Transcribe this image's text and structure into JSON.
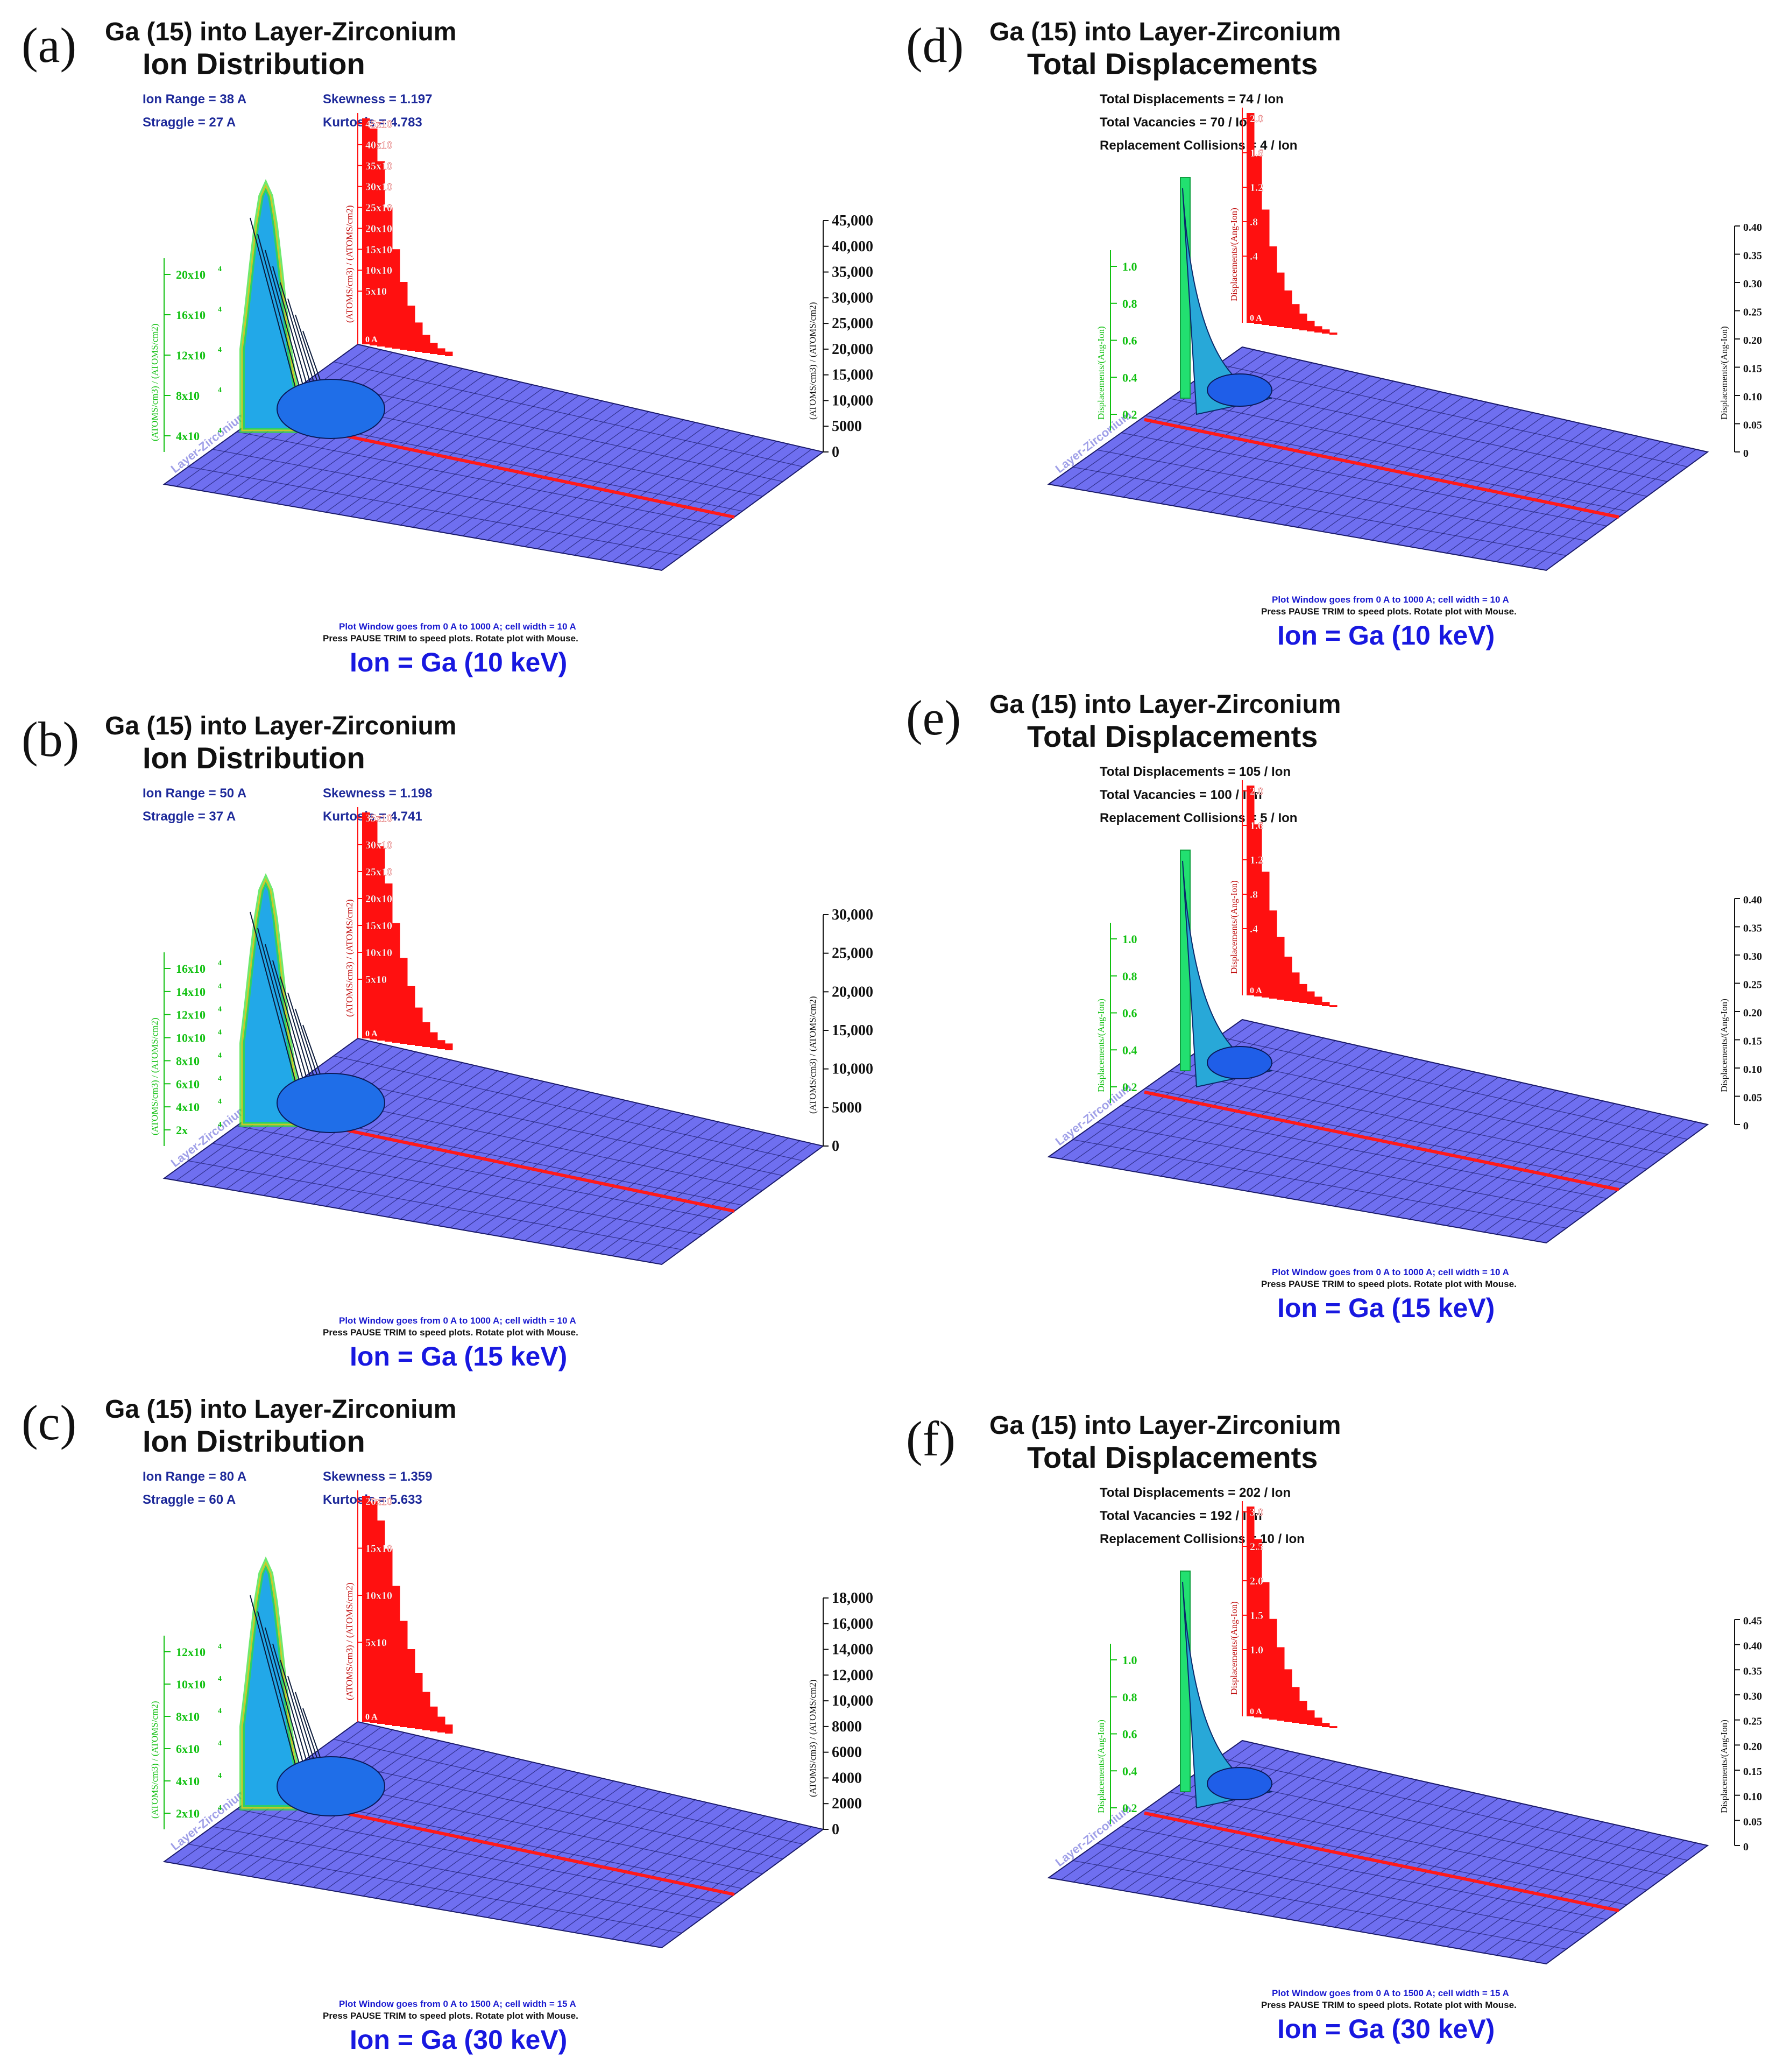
{
  "colors": {
    "floor": "#6f6ff0",
    "floor_grid": "#1a1a6a",
    "red_hist": "#ff1010",
    "red_line": "#ff1a1a",
    "green": "#10c010",
    "stats_blue": "#1e2a9a",
    "ion_label": "#1818e0"
  },
  "panels": [
    {
      "letter": "(a)",
      "title": "Ga (15) into Layer-Zirconium",
      "subtitle": "Ion Distribution",
      "stats": [
        "Ion Range =   38 A",
        "Skewness = 1.197",
        "Straggle =   27 A",
        "Kurtosis = 4.783"
      ],
      "left_ticks": [
        "20x10",
        "16x10",
        "12x10",
        "8x10",
        "4x10"
      ],
      "left_ylabel": "(ATOMS/cm3) / (ATOMS/cm2)",
      "red_ticks": [
        "45x10",
        "40x10",
        "35x10",
        "30x10",
        "25x10",
        "20x10",
        "15x10",
        "10x10",
        "5x10"
      ],
      "red_ylabel": "(ATOMS/cm3) / (ATOMS/cm2)",
      "red_zero": "0 A",
      "right_ticks": [
        "45,000",
        "40,000",
        "35,000",
        "30,000",
        "25,000",
        "20,000",
        "15,000",
        "10,000",
        "5000",
        "0"
      ],
      "right_ylabel": "(ATOMS/cm3) / (ATOMS/cm2)",
      "floor_label": "Layer-Zirconium",
      "footer1": "Plot Window goes from 0 A to 1000 A;  cell width = 10 A",
      "footer2": "Press PAUSE TRIM to speed plots.    Rotate plot with Mouse.",
      "ion": "Ion = Ga (10  keV)"
    },
    {
      "letter": "(b)",
      "title": "Ga (15) into Layer-Zirconium",
      "subtitle": "Ion Distribution",
      "stats": [
        "Ion Range =   50 A",
        "Skewness = 1.198",
        "Straggle =   37 A",
        "Kurtosis = 4.741"
      ],
      "left_ticks": [
        "16x10",
        "14x10",
        "12x10",
        "10x10",
        "8x10",
        "6x10",
        "4x10",
        "2x"
      ],
      "left_ylabel": "(ATOMS/cm3) / (ATOMS/cm2)",
      "red_ticks": [
        "35x10",
        "30x10",
        "25x10",
        "20x10",
        "15x10",
        "10x10",
        "5x10"
      ],
      "red_ylabel": "(ATOMS/cm3) / (ATOMS/cm2)",
      "red_zero": "0 A",
      "right_ticks": [
        "30,000",
        "25,000",
        "20,000",
        "15,000",
        "10,000",
        "5000",
        "0"
      ],
      "right_ylabel": "(ATOMS/cm3) / (ATOMS/cm2)",
      "floor_label": "Layer-Zirconium",
      "footer1": "Plot Window goes from 0 A to 1000 A;  cell width = 10 A",
      "footer2": "Press PAUSE TRIM to speed plots.    Rotate plot with Mouse.",
      "ion": "Ion = Ga (15  keV)"
    },
    {
      "letter": "(c)",
      "title": "Ga (15) into Layer-Zirconium",
      "subtitle": "Ion Distribution",
      "stats": [
        "Ion Range =   80 A",
        "Skewness = 1.359",
        "Straggle =   60 A",
        "Kurtosis = 5.633"
      ],
      "left_ticks": [
        "12x10",
        "10x10",
        "8x10",
        "6x10",
        "4x10",
        "2x10"
      ],
      "left_ylabel": "(ATOMS/cm3) / (ATOMS/cm2)",
      "red_ticks": [
        "20x10",
        "15x10",
        "10x10",
        "5x10"
      ],
      "red_ylabel": "(ATOMS/cm3) / (ATOMS/cm2)",
      "red_zero": "0 A",
      "right_ticks": [
        "18,000",
        "16,000",
        "14,000",
        "12,000",
        "10,000",
        "8000",
        "6000",
        "4000",
        "2000",
        "0"
      ],
      "right_ylabel": "(ATOMS/cm3) / (ATOMS/cm2)",
      "floor_label": "Layer-Zirconium",
      "footer1": "Plot Window goes from 0 A to 1500 A;  cell width = 15 A",
      "footer2": "Press PAUSE TRIM to speed plots.    Rotate plot with Mouse.",
      "ion": "Ion = Ga (30  keV)"
    },
    {
      "letter": "(d)",
      "title": "Ga (15) into Layer-Zirconium",
      "subtitle": "Total Displacements",
      "stats": [
        "Total Displacements = 74 / Ion",
        "Total Vacancies = 70 / Ion",
        "Replacement Collisions = 4 / Ion"
      ],
      "left_ticks": [
        "1.0",
        "0.8",
        "0.6",
        "0.4",
        "0.2"
      ],
      "left_ylabel": "Displacements/(Ang-Ion)",
      "red_ticks": [
        "2.0",
        "1.6",
        "1.2",
        ".8",
        ".4"
      ],
      "red_ylabel": "Displacements/(Ang-Ion)",
      "red_zero": "0 A",
      "right_ticks": [
        "0.40",
        "0.35",
        "0.30",
        "0.25",
        "0.20",
        "0.15",
        "0.10",
        "0.05",
        "0"
      ],
      "right_ylabel": "Displacements/(Ang-Ion)",
      "floor_label": "Layer-Zirconium",
      "footer1": "Plot Window goes from 0 A to 1000 A;  cell width = 10 A",
      "footer2": "Press PAUSE TRIM to speed plots.    Rotate plot with Mouse.",
      "ion": "Ion = Ga (10  keV)"
    },
    {
      "letter": "(e)",
      "title": "Ga (15) into Layer-Zirconium",
      "subtitle": "Total Displacements",
      "stats": [
        "Total Displacements = 105 / Ion",
        "Total Vacancies = 100 / Ion",
        "Replacement Collisions = 5 / Ion"
      ],
      "left_ticks": [
        "1.0",
        "0.8",
        "0.6",
        "0.4",
        "0.2"
      ],
      "left_ylabel": "Displacements/(Ang-Ion)",
      "red_ticks": [
        "2.0",
        "1.6",
        "1.2",
        ".8",
        ".4"
      ],
      "red_ylabel": "Displacements/(Ang-Ion)",
      "red_zero": "0 A",
      "right_ticks": [
        "0.40",
        "0.35",
        "0.30",
        "0.25",
        "0.20",
        "0.15",
        "0.10",
        "0.05",
        "0"
      ],
      "right_ylabel": "Displacements/(Ang-Ion)",
      "floor_label": "Layer-Zirconium",
      "footer1": "Plot Window goes from 0 A to 1000 A;  cell width = 10 A",
      "footer2": "Press PAUSE TRIM to speed plots.    Rotate plot with Mouse.",
      "ion": "Ion = Ga (15  keV)"
    },
    {
      "letter": "(f)",
      "title": "Ga (15) into Layer-Zirconium",
      "subtitle": "Total Displacements",
      "stats": [
        "Total Displacements = 202 / Ion",
        "Total Vacancies = 192 / Ion",
        "Replacement Collisions = 10 / Ion"
      ],
      "left_ticks": [
        "1.0",
        "0.8",
        "0.6",
        "0.4",
        "0.2"
      ],
      "left_ylabel": "Displacements/(Ang-Ion)",
      "red_ticks": [
        "3.0",
        "2.5",
        "2.0",
        "1.5",
        "1.0"
      ],
      "red_ylabel": "Displacements/(Ang-Ion)",
      "red_zero": "0 A",
      "right_ticks": [
        "0.45",
        "0.40",
        "0.35",
        "0.30",
        "0.25",
        "0.20",
        "0.15",
        "0.10",
        "0.05",
        "0"
      ],
      "right_ylabel": "Displacements/(Ang-Ion)",
      "floor_label": "Layer-Zirconium",
      "footer1": "Plot Window goes from 0 A to 1500 A;  cell width = 15 A",
      "footer2": "Press PAUSE TRIM to speed plots.    Rotate plot with Mouse.",
      "ion": "Ion = Ga (30  keV)"
    }
  ],
  "chart_data": [
    {
      "type": "area",
      "kind": "ion-distribution",
      "ion_range_A": 38,
      "straggle_A": 27,
      "skewness": 1.197,
      "kurtosis": 4.783,
      "xlim_A": [
        0,
        1000
      ],
      "right_axis_range": [
        0,
        45000
      ],
      "red_profile_relative": [
        1.0,
        0.96,
        0.82,
        0.62,
        0.44,
        0.3,
        0.2,
        0.13,
        0.08,
        0.05,
        0.03,
        0.02
      ]
    },
    {
      "type": "area",
      "kind": "ion-distribution",
      "ion_range_A": 50,
      "straggle_A": 37,
      "skewness": 1.198,
      "kurtosis": 4.741,
      "xlim_A": [
        0,
        1000
      ],
      "right_axis_range": [
        0,
        30000
      ],
      "red_profile_relative": [
        1.0,
        0.97,
        0.86,
        0.7,
        0.53,
        0.38,
        0.26,
        0.17,
        0.11,
        0.07,
        0.04,
        0.03
      ]
    },
    {
      "type": "area",
      "kind": "ion-distribution",
      "ion_range_A": 80,
      "straggle_A": 60,
      "skewness": 1.359,
      "kurtosis": 5.633,
      "xlim_A": [
        0,
        1500
      ],
      "right_axis_range": [
        0,
        18000
      ],
      "red_profile_relative": [
        1.0,
        0.98,
        0.9,
        0.78,
        0.62,
        0.47,
        0.35,
        0.25,
        0.17,
        0.11,
        0.07,
        0.04
      ]
    },
    {
      "type": "area",
      "kind": "total-displacements",
      "total_displacements_per_ion": 74,
      "total_vacancies_per_ion": 70,
      "replacement_collisions_per_ion": 4,
      "xlim_A": [
        0,
        1000
      ],
      "right_axis_range": [
        0,
        0.4
      ],
      "red_profile_relative": [
        1.0,
        0.8,
        0.55,
        0.38,
        0.26,
        0.18,
        0.12,
        0.08,
        0.05,
        0.03,
        0.02,
        0.01
      ]
    },
    {
      "type": "area",
      "kind": "total-displacements",
      "total_displacements_per_ion": 105,
      "total_vacancies_per_ion": 100,
      "replacement_collisions_per_ion": 5,
      "xlim_A": [
        0,
        1000
      ],
      "right_axis_range": [
        0,
        0.4
      ],
      "red_profile_relative": [
        1.0,
        0.82,
        0.6,
        0.42,
        0.3,
        0.21,
        0.14,
        0.09,
        0.06,
        0.04,
        0.02,
        0.01
      ]
    },
    {
      "type": "area",
      "kind": "total-displacements",
      "total_displacements_per_ion": 202,
      "total_vacancies_per_ion": 192,
      "replacement_collisions_per_ion": 10,
      "xlim_A": [
        0,
        1500
      ],
      "right_axis_range": [
        0,
        0.45
      ],
      "red_profile_relative": [
        1.0,
        0.85,
        0.65,
        0.48,
        0.35,
        0.25,
        0.17,
        0.11,
        0.07,
        0.04,
        0.02,
        0.01
      ]
    }
  ]
}
